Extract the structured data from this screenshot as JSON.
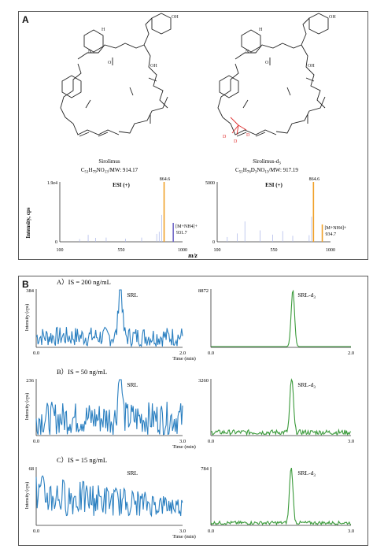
{
  "panel_a": {
    "label": "A",
    "compounds": [
      {
        "name": "Sirolimus",
        "formula": "C51H79NO13/MW: 914.17",
        "formula_display": [
          "C",
          "51",
          "H",
          "79",
          "NO",
          "13",
          "/MW: 914.17"
        ]
      },
      {
        "name": "Sirolimus-d3",
        "formula": "C51H76D3NO13/MW: 917.19",
        "formula_display": [
          "C",
          "51",
          "H",
          "76",
          "D",
          "3",
          "NO",
          "13",
          "/MW: 917.19"
        ]
      }
    ],
    "substituent_labels": {
      "oh": "OH",
      "h": "H",
      "n": "N",
      "o": "O",
      "d": "D"
    },
    "spectra_ylabel": "Intensity, cps",
    "spectra_xlabel": "m/z"
  },
  "panel_b": {
    "label": "B",
    "time_label": "Time (min)",
    "ylabel": "Intensity (cps)",
    "rows": [
      {
        "title": "A）IS = 200 ng/mL",
        "left_label": "SRL",
        "right_label": "SRL-d3",
        "left_ymax": "384",
        "right_ymax": "8872",
        "x_start": "0.0",
        "x_end": "2.0"
      },
      {
        "title": "B）IS = 50 ng/mL",
        "left_label": "SRL",
        "right_label": "SRL-d3",
        "left_ymax": "236",
        "right_ymax": "3260",
        "x_start": "0.0",
        "x_end": "3.0"
      },
      {
        "title": "C）IS = 15 ng/mL",
        "left_label": "SRL",
        "right_label": "SRL-d3",
        "left_ymax": "68",
        "right_ymax": "784",
        "x_start": "0.0",
        "x_end": "3.0"
      }
    ]
  },
  "colors": {
    "orange": "#f0a028",
    "purple": "#7068c8",
    "lightblue": "#a8b4e8",
    "blue": "#2a7fc0",
    "green": "#3a9a3a",
    "red": "#e03030"
  },
  "chart_data": [
    {
      "type": "bar",
      "title": "ESI (+)",
      "xlabel": "m/z",
      "ylabel": "Intensity, cps",
      "xlim": [
        100,
        1000
      ],
      "ylim": [
        0,
        19600
      ],
      "y_ticks": [
        "0",
        "1.9e4"
      ],
      "x_ticks": [
        "100",
        "550",
        "1000"
      ],
      "annotations": [
        "864.6",
        "[M+NH4]+",
        "931.7"
      ],
      "peaks": [
        {
          "mz": 864.6,
          "intensity": 19600,
          "color": "orange"
        },
        {
          "mz": 931.7,
          "intensity": 6200,
          "color": "purple"
        },
        {
          "mz": 846.6,
          "intensity": 8800,
          "color": "lightblue"
        },
        {
          "mz": 828.5,
          "intensity": 3300,
          "color": "lightblue"
        },
        {
          "mz": 810.5,
          "intensity": 2600,
          "color": "lightblue"
        },
        {
          "mz": 700,
          "intensity": 1400,
          "color": "lightblue"
        },
        {
          "mz": 582,
          "intensity": 1000,
          "color": "lightblue"
        },
        {
          "mz": 440,
          "intensity": 1400,
          "color": "lightblue"
        },
        {
          "mz": 362,
          "intensity": 1300,
          "color": "lightblue"
        },
        {
          "mz": 308,
          "intensity": 2300,
          "color": "lightblue"
        },
        {
          "mz": 245,
          "intensity": 900,
          "color": "lightblue"
        }
      ]
    },
    {
      "type": "bar",
      "title": "ESI (+)",
      "xlabel": "m/z",
      "ylabel": "Intensity, cps",
      "xlim": [
        100,
        1000
      ],
      "ylim": [
        0,
        5000
      ],
      "y_ticks": [
        "0",
        "5000"
      ],
      "x_ticks": [
        "100",
        "550",
        "1000"
      ],
      "annotations": [
        "864.6",
        "[M+NH4]+",
        "934.7"
      ],
      "peaks": [
        {
          "mz": 864.6,
          "intensity": 5000,
          "color": "orange"
        },
        {
          "mz": 934.7,
          "intensity": 1450,
          "color": "orange"
        },
        {
          "mz": 849.6,
          "intensity": 2100,
          "color": "lightblue"
        },
        {
          "mz": 830.5,
          "intensity": 550,
          "color": "lightblue"
        },
        {
          "mz": 700,
          "intensity": 500,
          "color": "lightblue"
        },
        {
          "mz": 620,
          "intensity": 900,
          "color": "lightblue"
        },
        {
          "mz": 540,
          "intensity": 600,
          "color": "lightblue"
        },
        {
          "mz": 440,
          "intensity": 950,
          "color": "lightblue"
        },
        {
          "mz": 320,
          "intensity": 1700,
          "color": "lightblue"
        },
        {
          "mz": 260,
          "intensity": 700,
          "color": "lightblue"
        },
        {
          "mz": 180,
          "intensity": 400,
          "color": "lightblue"
        }
      ]
    },
    {
      "type": "line",
      "name": "SRL",
      "condition": "IS = 200 ng/mL",
      "xlabel": "Time (min)",
      "ylabel": "Intensity (cps)",
      "xlim": [
        0.0,
        2.0
      ],
      "ylim": [
        0,
        384
      ],
      "peak_time": 1.15,
      "peak_height": 384,
      "noise_level": 35,
      "color": "blue"
    },
    {
      "type": "line",
      "name": "SRL-d3",
      "condition": "IS = 200 ng/mL",
      "xlabel": "Time (min)",
      "xlim": [
        0.0,
        2.0
      ],
      "ylim": [
        0,
        8872
      ],
      "peak_time": 1.17,
      "peak_height": 8872,
      "noise_level": 0,
      "color": "green"
    },
    {
      "type": "line",
      "name": "SRL",
      "condition": "IS = 50 ng/mL",
      "xlabel": "Time (min)",
      "ylabel": "Intensity (cps)",
      "xlim": [
        0.0,
        3.0
      ],
      "ylim": [
        0,
        236
      ],
      "peak_time": 1.72,
      "peak_height": 236,
      "noise_level": 60,
      "color": "blue"
    },
    {
      "type": "line",
      "name": "SRL-d3",
      "condition": "IS = 50 ng/mL",
      "xlabel": "Time (min)",
      "xlim": [
        0.0,
        3.0
      ],
      "ylim": [
        0,
        3260
      ],
      "peak_time": 1.73,
      "peak_height": 3260,
      "noise_level": 30,
      "color": "green"
    },
    {
      "type": "line",
      "name": "SRL",
      "condition": "IS = 15 ng/mL",
      "xlabel": "Time (min)",
      "ylabel": "Intensity (cps)",
      "xlim": [
        0.0,
        3.0
      ],
      "ylim": [
        0,
        68
      ],
      "peak_time": 0.5,
      "peak_height": 68,
      "noise_level": 40,
      "color": "blue"
    },
    {
      "type": "line",
      "name": "SRL-d3",
      "condition": "IS = 15 ng/mL",
      "xlabel": "Time (min)",
      "xlim": [
        0.0,
        3.0
      ],
      "ylim": [
        0,
        784
      ],
      "peak_time": 1.72,
      "peak_height": 784,
      "noise_level": 20,
      "color": "green"
    }
  ]
}
